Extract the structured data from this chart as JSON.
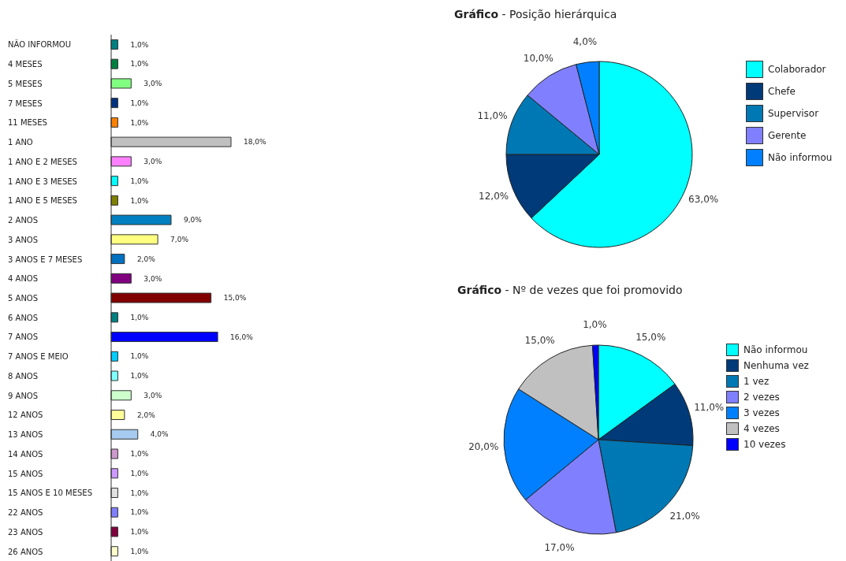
{
  "chart_data": [
    {
      "type": "bar",
      "orientation": "horizontal",
      "categories": [
        "NÃO INFORMOU",
        "4 MESES",
        "5 MESES",
        "7 MESES",
        "11 MESES",
        "1 ANO",
        "1 ANO E 2 MESES",
        "1 ANO E 3 MESES",
        "1 ANO E 5 MESES",
        "2 ANOS",
        "3 ANOS",
        "3 ANOS E 7 MESES",
        "4 ANOS",
        "5 ANOS",
        "6 ANOS",
        "7 ANOS",
        "7 ANOS E MEIO",
        "8 ANOS",
        "9 ANOS",
        "12 ANOS",
        "13 ANOS",
        "14 ANOS",
        "15 ANOS",
        "15 ANOS E 10 MESES",
        "22 ANOS",
        "23 ANOS",
        "26 ANOS"
      ],
      "values": [
        1,
        1,
        3,
        1,
        1,
        18,
        3,
        1,
        1,
        9,
        7,
        2,
        3,
        15,
        1,
        16,
        1,
        1,
        3,
        2,
        4,
        1,
        1,
        1,
        1,
        1,
        1
      ],
      "value_labels": [
        "1,0%",
        "1,0%",
        "3,0%",
        "1,0%",
        "1,0%",
        "18,0%",
        "3,0%",
        "1,0%",
        "1,0%",
        "9,0%",
        "7,0%",
        "2,0%",
        "3,0%",
        "15,0%",
        "1,0%",
        "16,0%",
        "1,0%",
        "1,0%",
        "3,0%",
        "2,0%",
        "4,0%",
        "1,0%",
        "1,0%",
        "1,0%",
        "1,0%",
        "1,0%",
        "1,0%"
      ],
      "colors": [
        "#008080",
        "#008040",
        "#80ff80",
        "#003080",
        "#ff8000",
        "#c0c0c0",
        "#ff80ff",
        "#00ffff",
        "#808000",
        "#0080c0",
        "#ffff80",
        "#0070c0",
        "#800080",
        "#800000",
        "#008080",
        "#0000ff",
        "#00ccff",
        "#80ffff",
        "#ccffcc",
        "#ffff99",
        "#a6caf0",
        "#cc99cc",
        "#cc99ff",
        "#e0e0e0",
        "#8080ff",
        "#800040",
        "#ffffcc"
      ]
    },
    {
      "type": "pie",
      "title": "Gráfico - Posição hierárquica",
      "categories": [
        "Colaborador",
        "Chefe",
        "Supervisor",
        "Gerente",
        "Não informou"
      ],
      "values": [
        63,
        12,
        11,
        10,
        4
      ],
      "value_labels": [
        "63,0%",
        "12,0%",
        "11,0%",
        "10,0%",
        "4,0%"
      ],
      "colors": [
        "#00ffff",
        "#003a78",
        "#0078b4",
        "#8080ff",
        "#0080ff"
      ],
      "legend": "right"
    },
    {
      "type": "pie",
      "title": "Gráfico - Nº de vezes que foi promovido",
      "categories": [
        "Não informou",
        "Nenhuma vez",
        "1 vez",
        "2 vezes",
        "3 vezes",
        "4 vezes",
        "10 vezes"
      ],
      "values": [
        15,
        11,
        21,
        17,
        20,
        15,
        1
      ],
      "value_labels": [
        "15,0%",
        "11,0%",
        "21,0%",
        "17,0%",
        "20,0%",
        "15,0%",
        "1,0%"
      ],
      "colors": [
        "#00ffff",
        "#003a78",
        "#0078b4",
        "#8080ff",
        "#0080ff",
        "#c0c0c0",
        "#0000ff"
      ],
      "legend": "right"
    }
  ]
}
